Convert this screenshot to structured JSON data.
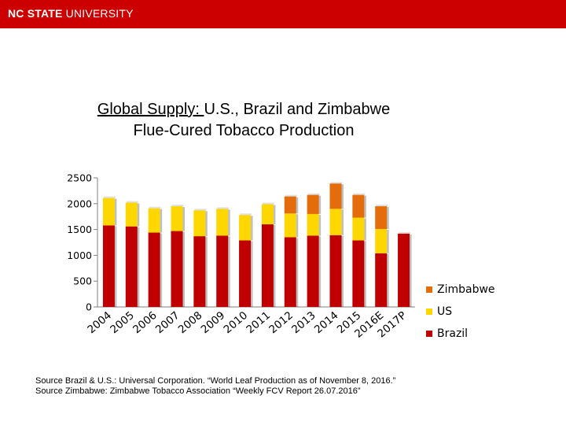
{
  "header": {
    "logo_bold": "NC STATE",
    "logo_rest": " UNIVERSITY",
    "bar_color": "#cc0000"
  },
  "title": {
    "line1_underlined": "Global Supply:  ",
    "line1_rest": "U.S., Brazil and Zimbabwe",
    "line2": "Flue-Cured Tobacco Production"
  },
  "chart_data": {
    "type": "bar",
    "stacked": true,
    "categories": [
      "2004",
      "2005",
      "2006",
      "2007",
      "2008",
      "2009",
      "2010",
      "2011",
      "2012",
      "2013",
      "2014",
      "2015",
      "2016E",
      "2017P"
    ],
    "series": [
      {
        "name": "Brazil",
        "color": "#c00000",
        "values": [
          1580,
          1560,
          1440,
          1470,
          1370,
          1380,
          1290,
          1600,
          1350,
          1380,
          1390,
          1290,
          1040,
          1420
        ]
      },
      {
        "name": "US",
        "color": "#ffd700",
        "values": [
          530,
          460,
          470,
          480,
          500,
          520,
          490,
          390,
          460,
          420,
          510,
          440,
          470,
          0
        ]
      },
      {
        "name": "Zimbabwe",
        "color": "#e46c0a",
        "values": [
          0,
          0,
          0,
          0,
          0,
          0,
          0,
          0,
          330,
          370,
          490,
          440,
          440,
          0
        ]
      }
    ],
    "ylim": [
      0,
      2500
    ],
    "yticks": [
      0,
      500,
      1000,
      1500,
      2000,
      2500
    ],
    "ytick_labels": [
      "0",
      "500",
      "1000",
      "1500",
      "2000",
      "2500"
    ],
    "grid": false,
    "legend_position": "right",
    "xlabel": "",
    "ylabel": ""
  },
  "legend": {
    "items": [
      {
        "label": "Zimbabwe",
        "color": "#e46c0a"
      },
      {
        "label": "US",
        "color": "#ffd700"
      },
      {
        "label": "Brazil",
        "color": "#c00000"
      }
    ]
  },
  "source": {
    "line1": "Source Brazil & U.S.: Universal Corporation.  “World Leaf Production as of November 8, 2016.”",
    "line2": "Source Zimbabwe:  Zimbabwe Tobacco Association “Weekly FCV Report 26.07.2016”"
  }
}
